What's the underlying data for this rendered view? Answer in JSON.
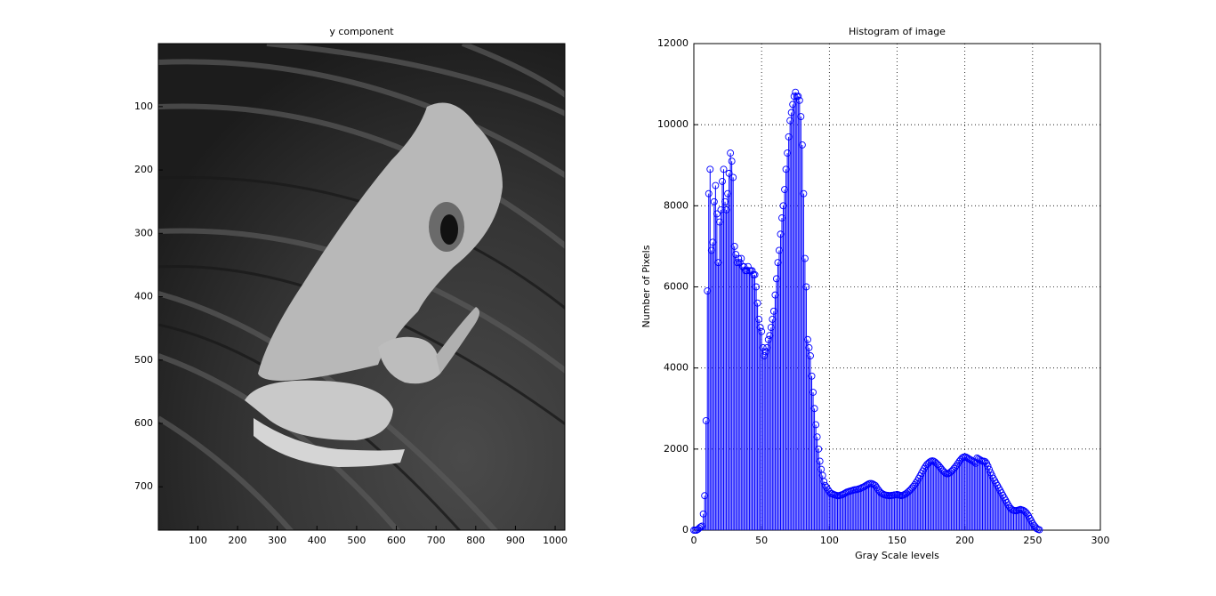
{
  "chart_data": [
    {
      "type": "image",
      "title": "y component",
      "xlim": [
        0.5,
        1024.5
      ],
      "ylim": [
        0.5,
        768.5
      ],
      "y_reversed": true,
      "xticks": [
        100,
        200,
        300,
        400,
        500,
        600,
        700,
        800,
        900,
        1000
      ],
      "yticks": [
        100,
        200,
        300,
        400,
        500,
        600,
        700
      ]
    },
    {
      "type": "stem",
      "title": "Histogram of image",
      "x_label": "Gray Scale levels",
      "y_label": "Number of Pixels",
      "color": "#0000ff",
      "grid": true,
      "xlim": [
        0,
        300
      ],
      "ylim": [
        0,
        12000
      ],
      "xticks": [
        0,
        50,
        100,
        150,
        200,
        250,
        300
      ],
      "yticks": [
        0,
        2000,
        4000,
        6000,
        8000,
        10000,
        12000
      ],
      "x": [
        0,
        1,
        2,
        3,
        4,
        5,
        6,
        7,
        8,
        9,
        10,
        11,
        12,
        13,
        14,
        15,
        16,
        17,
        18,
        19,
        20,
        21,
        22,
        23,
        24,
        25,
        26,
        27,
        28,
        29,
        30,
        31,
        32,
        33,
        34,
        35,
        36,
        37,
        38,
        39,
        40,
        41,
        42,
        43,
        44,
        45,
        46,
        47,
        48,
        49,
        50,
        51,
        52,
        53,
        54,
        55,
        56,
        57,
        58,
        59,
        60,
        61,
        62,
        63,
        64,
        65,
        66,
        67,
        68,
        69,
        70,
        71,
        72,
        73,
        74,
        75,
        76,
        77,
        78,
        79,
        80,
        81,
        82,
        83,
        84,
        85,
        86,
        87,
        88,
        89,
        90,
        91,
        92,
        93,
        94,
        95,
        96,
        97,
        98,
        99,
        100,
        101,
        102,
        103,
        104,
        105,
        106,
        107,
        108,
        109,
        110,
        111,
        112,
        113,
        114,
        115,
        116,
        117,
        118,
        119,
        120,
        121,
        122,
        123,
        124,
        125,
        126,
        127,
        128,
        129,
        130,
        131,
        132,
        133,
        134,
        135,
        136,
        137,
        138,
        139,
        140,
        141,
        142,
        143,
        144,
        145,
        146,
        147,
        148,
        149,
        150,
        151,
        152,
        153,
        154,
        155,
        156,
        157,
        158,
        159,
        160,
        161,
        162,
        163,
        164,
        165,
        166,
        167,
        168,
        169,
        170,
        171,
        172,
        173,
        174,
        175,
        176,
        177,
        178,
        179,
        180,
        181,
        182,
        183,
        184,
        185,
        186,
        187,
        188,
        189,
        190,
        191,
        192,
        193,
        194,
        195,
        196,
        197,
        198,
        199,
        200,
        201,
        202,
        203,
        204,
        205,
        206,
        207,
        208,
        209,
        210,
        211,
        212,
        213,
        214,
        215,
        216,
        217,
        218,
        219,
        220,
        221,
        222,
        223,
        224,
        225,
        226,
        227,
        228,
        229,
        230,
        231,
        232,
        233,
        234,
        235,
        236,
        237,
        238,
        239,
        240,
        241,
        242,
        243,
        244,
        245,
        246,
        247,
        248,
        249,
        250,
        251,
        252,
        253,
        254,
        255
      ],
      "values": [
        0,
        0,
        0,
        20,
        50,
        80,
        100,
        400,
        850,
        2700,
        5900,
        8300,
        8900,
        6900,
        7100,
        8100,
        8500,
        7800,
        6600,
        7600,
        7900,
        8600,
        8900,
        8100,
        7900,
        8300,
        8800,
        9300,
        9100,
        8700,
        7000,
        6800,
        6600,
        6700,
        6600,
        6700,
        6500,
        6500,
        6400,
        6400,
        6500,
        6400,
        6400,
        6400,
        6300,
        6300,
        6000,
        5600,
        5200,
        5000,
        4900,
        4500,
        4300,
        4400,
        4500,
        4700,
        4800,
        5000,
        5200,
        5400,
        5800,
        6200,
        6600,
        6900,
        7300,
        7700,
        8000,
        8400,
        8900,
        9300,
        9700,
        10100,
        10300,
        10500,
        10700,
        10800,
        10700,
        10700,
        10600,
        10200,
        9500,
        8300,
        6700,
        6000,
        4700,
        4500,
        4300,
        3800,
        3400,
        3000,
        2600,
        2300,
        2000,
        1700,
        1500,
        1350,
        1200,
        1100,
        1050,
        1000,
        950,
        900,
        900,
        880,
        870,
        860,
        850,
        850,
        860,
        870,
        880,
        900,
        920,
        940,
        950,
        960,
        970,
        980,
        990,
        1000,
        1000,
        1010,
        1020,
        1030,
        1050,
        1060,
        1080,
        1100,
        1120,
        1140,
        1150,
        1150,
        1140,
        1120,
        1100,
        1050,
        1000,
        960,
        920,
        900,
        880,
        870,
        860,
        860,
        850,
        850,
        860,
        860,
        870,
        870,
        880,
        870,
        860,
        850,
        860,
        870,
        890,
        910,
        940,
        970,
        1000,
        1040,
        1080,
        1120,
        1170,
        1220,
        1280,
        1340,
        1400,
        1460,
        1520,
        1570,
        1620,
        1650,
        1680,
        1700,
        1710,
        1700,
        1680,
        1650,
        1620,
        1580,
        1540,
        1500,
        1460,
        1430,
        1400,
        1390,
        1400,
        1420,
        1450,
        1480,
        1520,
        1560,
        1600,
        1650,
        1700,
        1740,
        1780,
        1800,
        1810,
        1800,
        1780,
        1760,
        1740,
        1720,
        1700,
        1680,
        1650,
        1780,
        1760,
        1740,
        1720,
        1700,
        1700,
        1690,
        1650,
        1580,
        1500,
        1420,
        1350,
        1280,
        1220,
        1160,
        1100,
        1040,
        980,
        920,
        860,
        800,
        740,
        680,
        620,
        570,
        530,
        500,
        490,
        480,
        480,
        490,
        500,
        510,
        500,
        490,
        470,
        440,
        400,
        350,
        290,
        230,
        170,
        120,
        80,
        40,
        20,
        10
      ]
    }
  ]
}
